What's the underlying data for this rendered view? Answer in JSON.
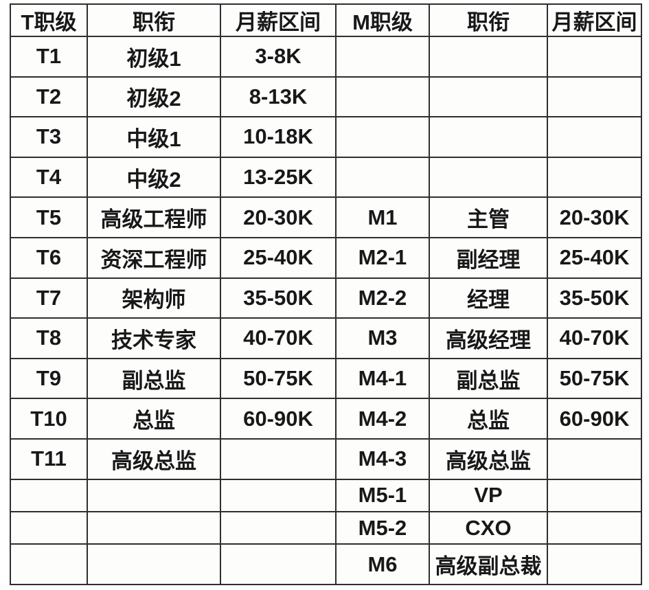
{
  "table": {
    "headers": [
      "T职级",
      "职衔",
      "月薪区间",
      "M职级",
      "职衔",
      "月薪区间"
    ],
    "rows": [
      [
        "T1",
        "初级1",
        "3-8K",
        "",
        "",
        ""
      ],
      [
        "T2",
        "初级2",
        "8-13K",
        "",
        "",
        ""
      ],
      [
        "T3",
        "中级1",
        "10-18K",
        "",
        "",
        ""
      ],
      [
        "T4",
        "中级2",
        "13-25K",
        "",
        "",
        ""
      ],
      [
        "T5",
        "高级工程师",
        "20-30K",
        "M1",
        "主管",
        "20-30K"
      ],
      [
        "T6",
        "资深工程师",
        "25-40K",
        "M2-1",
        "副经理",
        "25-40K"
      ],
      [
        "T7",
        "架构师",
        "35-50K",
        "M2-2",
        "经理",
        "35-50K"
      ],
      [
        "T8",
        "技术专家",
        "40-70K",
        "M3",
        "高级经理",
        "40-70K"
      ],
      [
        "T9",
        "副总监",
        "50-75K",
        "M4-1",
        "副总监",
        "50-75K"
      ],
      [
        "T10",
        "总监",
        "60-90K",
        "M4-2",
        "总监",
        "60-90K"
      ],
      [
        "T11",
        "高级总监",
        "",
        "M4-3",
        "高级总监",
        ""
      ],
      [
        "",
        "",
        "",
        "M5-1",
        "VP",
        ""
      ],
      [
        "",
        "",
        "",
        "M5-2",
        "CXO",
        ""
      ],
      [
        "",
        "",
        "",
        "M6",
        "高级副总裁",
        ""
      ]
    ],
    "colors": {
      "border": "#2e2e2e",
      "background": "#fdfdfc",
      "text": "#181818"
    }
  }
}
